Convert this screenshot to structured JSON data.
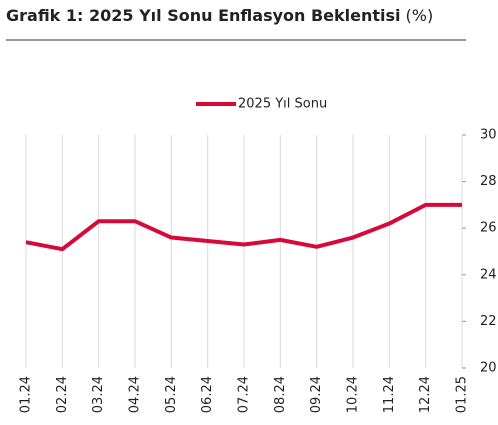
{
  "chart_data": {
    "type": "line",
    "title": "Grafik 1: 2025 Yıl Sonu Enflasyon Beklentisi",
    "title_unit": "(%)",
    "categories": [
      "01.24",
      "02.24",
      "03.24",
      "04.24",
      "05.24",
      "06.24",
      "07.24",
      "08.24",
      "09.24",
      "10.24",
      "11.24",
      "12.24",
      "01.25"
    ],
    "series": [
      {
        "name": "2025 Yıl Sonu",
        "color": "#d6093a",
        "values": [
          25.4,
          25.1,
          26.3,
          26.3,
          25.6,
          25.45,
          25.3,
          25.5,
          25.2,
          25.6,
          26.2,
          27.0,
          27.0
        ]
      }
    ],
    "ylim": [
      20,
      30
    ],
    "yticks": [
      20,
      22,
      24,
      26,
      28,
      30
    ],
    "grid": true,
    "legend": "top"
  }
}
